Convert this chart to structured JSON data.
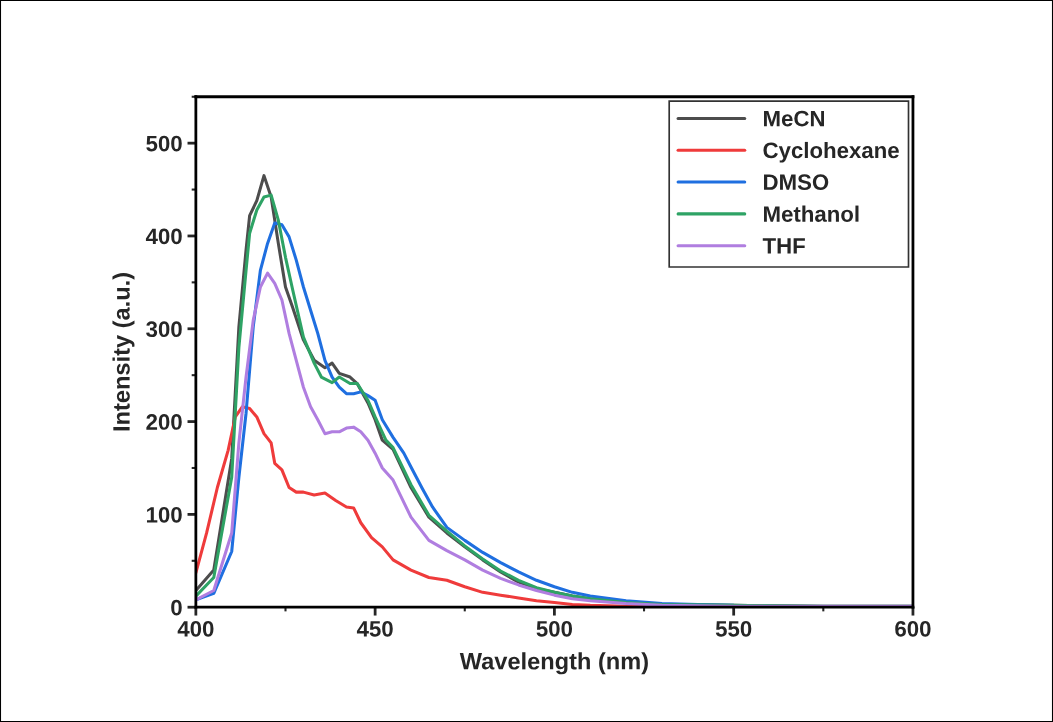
{
  "chart_data": {
    "type": "line",
    "xlabel": "Wavelength (nm)",
    "ylabel": "Intensity (a.u.)",
    "xlim": [
      400,
      600
    ],
    "xticks": [
      400,
      450,
      500,
      550,
      600
    ],
    "ylim": [
      0,
      550
    ],
    "yticks": [
      0,
      100,
      200,
      300,
      400,
      500
    ],
    "grid": false,
    "legend": "top right",
    "marker": "none",
    "line_style": "solid",
    "series": [
      {
        "name": "MeCN",
        "color": "#4d4d4d",
        "x": [
          400,
          405,
          410,
          412,
          414,
          415,
          417,
          419,
          421,
          423,
          425,
          427,
          430,
          433,
          436,
          438,
          440,
          443,
          445,
          448,
          450,
          452,
          455,
          460,
          465,
          470,
          475,
          480,
          485,
          490,
          495,
          500,
          505,
          510,
          520,
          530,
          550,
          575,
          600
        ],
        "values": [
          18,
          40,
          160,
          302,
          385,
          422,
          438,
          465,
          442,
          392,
          345,
          323,
          288,
          266,
          258,
          263,
          252,
          248,
          241,
          220,
          202,
          180,
          170,
          129,
          97,
          80,
          65,
          51,
          38,
          27,
          20,
          16,
          12,
          9,
          5,
          3,
          2,
          1,
          1
        ]
      },
      {
        "name": "Cyclohexane",
        "color": "#ef3b3b",
        "x": [
          400,
          403,
          406,
          409,
          411,
          413,
          415,
          417,
          419,
          421,
          422,
          424,
          426,
          428,
          430,
          433,
          436,
          439,
          442,
          444,
          446,
          449,
          452,
          455,
          460,
          465,
          470,
          475,
          480,
          485,
          490,
          495,
          500,
          505,
          510,
          520,
          550,
          600
        ],
        "values": [
          37,
          80,
          129,
          169,
          205,
          216,
          214,
          205,
          187,
          177,
          155,
          148,
          129,
          124,
          124,
          121,
          123,
          115,
          108,
          107,
          91,
          75,
          65,
          51,
          40,
          32,
          29,
          22,
          16,
          13,
          10,
          7,
          5,
          3,
          2,
          1,
          0,
          0
        ]
      },
      {
        "name": "DMSO",
        "color": "#1f6fe0",
        "x": [
          400,
          405,
          410,
          412,
          414,
          416,
          418,
          420,
          422,
          424,
          426,
          428,
          430,
          432,
          434,
          436,
          438,
          440,
          442,
          444,
          446,
          448,
          450,
          452,
          455,
          458,
          460,
          463,
          466,
          470,
          475,
          480,
          485,
          490,
          495,
          500,
          505,
          510,
          520,
          530,
          540,
          550
        ],
        "values": [
          8,
          15,
          60,
          140,
          209,
          302,
          363,
          392,
          414,
          412,
          399,
          374,
          345,
          320,
          295,
          266,
          248,
          237,
          230,
          230,
          232,
          228,
          223,
          202,
          183,
          166,
          151,
          129,
          108,
          86,
          72,
          59,
          48,
          38,
          29,
          22,
          16,
          12,
          7,
          4,
          3,
          2
        ]
      },
      {
        "name": "Methanol",
        "color": "#2ea365",
        "x": [
          400,
          405,
          410,
          412,
          414,
          415,
          417,
          419,
          421,
          423,
          425,
          427,
          430,
          433,
          435,
          438,
          440,
          443,
          445,
          448,
          450,
          453,
          455,
          460,
          465,
          470,
          475,
          480,
          485,
          490,
          495,
          500,
          505,
          510,
          520,
          530,
          550,
          575,
          600
        ],
        "values": [
          12,
          32,
          140,
          280,
          363,
          403,
          428,
          442,
          444,
          417,
          377,
          342,
          291,
          263,
          248,
          242,
          248,
          241,
          241,
          223,
          205,
          180,
          172,
          132,
          99,
          82,
          66,
          52,
          39,
          29,
          21,
          16,
          12,
          9,
          5,
          3,
          2,
          1,
          1
        ]
      },
      {
        "name": "THF",
        "color": "#b07ee0",
        "x": [
          400,
          405,
          410,
          412,
          414,
          416,
          418,
          420,
          422,
          424,
          426,
          428,
          430,
          432,
          434,
          436,
          438,
          440,
          442,
          444,
          446,
          448,
          450,
          452,
          455,
          460,
          465,
          470,
          475,
          480,
          485,
          490,
          495,
          500,
          505,
          510,
          520,
          530,
          550,
          600
        ],
        "values": [
          8,
          18,
          80,
          177,
          248,
          309,
          345,
          360,
          349,
          331,
          295,
          266,
          237,
          216,
          202,
          187,
          189,
          189,
          193,
          194,
          189,
          180,
          166,
          150,
          137,
          97,
          72,
          61,
          51,
          40,
          31,
          24,
          18,
          13,
          9,
          7,
          4,
          2,
          1,
          1
        ]
      }
    ]
  }
}
